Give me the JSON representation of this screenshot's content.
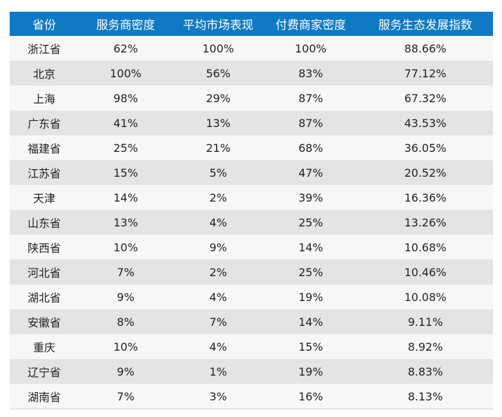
{
  "chart_data": {
    "type": "table",
    "columns": [
      "省份",
      "服务商密度",
      "平均市场表现",
      "付费商家密度",
      "服务生态发展指数"
    ],
    "rows": [
      [
        "浙江省",
        "62%",
        "100%",
        "100%",
        "88.66%"
      ],
      [
        "北京",
        "100%",
        "56%",
        "83%",
        "77.12%"
      ],
      [
        "上海",
        "98%",
        "29%",
        "87%",
        "67.32%"
      ],
      [
        "广东省",
        "41%",
        "13%",
        "87%",
        "43.53%"
      ],
      [
        "福建省",
        "25%",
        "21%",
        "68%",
        "36.05%"
      ],
      [
        "江苏省",
        "15%",
        "5%",
        "47%",
        "20.52%"
      ],
      [
        "天津",
        "14%",
        "2%",
        "39%",
        "16.36%"
      ],
      [
        "山东省",
        "13%",
        "4%",
        "25%",
        "13.26%"
      ],
      [
        "陕西省",
        "10%",
        "9%",
        "14%",
        "10.68%"
      ],
      [
        "河北省",
        "7%",
        "2%",
        "25%",
        "10.46%"
      ],
      [
        "湖北省",
        "9%",
        "4%",
        "19%",
        "10.08%"
      ],
      [
        "安徽省",
        "8%",
        "7%",
        "14%",
        "9.11%"
      ],
      [
        "重庆",
        "10%",
        "4%",
        "15%",
        "8.92%"
      ],
      [
        "辽宁省",
        "9%",
        "1%",
        "19%",
        "8.83%"
      ],
      [
        "湖南省",
        "7%",
        "3%",
        "16%",
        "8.13%"
      ]
    ]
  },
  "colors": {
    "header_bg": "#0f79c4",
    "header_text": "#ffffff",
    "row_light": "#f6f7f8",
    "row_dark": "#e3e4e6",
    "cell_text": "#222222"
  }
}
